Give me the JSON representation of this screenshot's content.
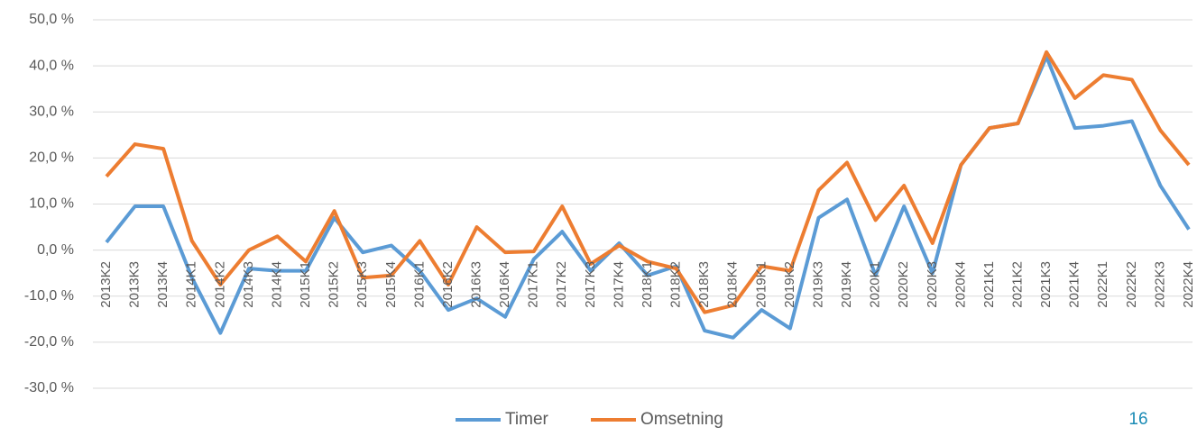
{
  "chart_data": {
    "type": "line",
    "categories": [
      "2013K2",
      "2013K3",
      "2013K4",
      "2014K1",
      "2014K2",
      "2014K3",
      "2014K4",
      "2015K1",
      "2015K2",
      "2015K3",
      "2015K4",
      "2016K1",
      "2016K2",
      "2016K3",
      "2016K4",
      "2017K1",
      "2017K2",
      "2017K3",
      "2017K4",
      "2018K1",
      "2018K2",
      "2018K3",
      "2018K4",
      "2019K1",
      "2019K2",
      "2019K3",
      "2019K4",
      "2020K1",
      "2020K2",
      "2020K3",
      "2020K4",
      "2021K1",
      "2021K2",
      "2021K3",
      "2021K4",
      "2022K1",
      "2022K2",
      "2022K3",
      "2022K4"
    ],
    "series": [
      {
        "name": "Timer",
        "color": "#5b9bd5",
        "values": [
          1.7,
          9.5,
          9.5,
          -6,
          -18,
          -4,
          -4.5,
          -4.5,
          7,
          -0.5,
          1,
          -4.5,
          -13,
          -10.5,
          -14.5,
          -2,
          4,
          -4.5,
          1.5,
          -5.5,
          -3.5,
          -17.5,
          -19,
          -13,
          -17,
          7,
          11,
          -5.5,
          9.5,
          -5,
          18.5,
          26.5,
          27.5,
          42,
          26.5,
          27,
          28,
          14,
          4.5
        ]
      },
      {
        "name": "Omsetning",
        "color": "#ed7d31",
        "values": [
          16,
          23,
          22,
          2,
          -7.5,
          0,
          3,
          -2.5,
          8.5,
          -6,
          -5.5,
          2,
          -7.5,
          5,
          -0.5,
          -0.3,
          9.5,
          -3,
          1,
          -2.5,
          -4,
          -13.5,
          -12,
          -3.5,
          -4.5,
          13,
          19,
          6.5,
          14,
          1.5,
          18.5,
          26.5,
          27.5,
          43,
          33,
          38,
          37,
          26,
          18.5
        ]
      }
    ],
    "ylim": [
      -30,
      50
    ],
    "yticks": [
      {
        "value": -30,
        "label": "-30,0 %"
      },
      {
        "value": -20,
        "label": "-20,0 %"
      },
      {
        "value": -10,
        "label": "-10,0 %"
      },
      {
        "value": 0,
        "label": "0,0 %"
      },
      {
        "value": 10,
        "label": "10,0 %"
      },
      {
        "value": 20,
        "label": "20,0 %"
      },
      {
        "value": 30,
        "label": "30,0 %"
      },
      {
        "value": 40,
        "label": "40,0 %"
      },
      {
        "value": 50,
        "label": "50,0 %"
      }
    ],
    "grid": true,
    "legend": "bottom"
  },
  "page_number": "16"
}
